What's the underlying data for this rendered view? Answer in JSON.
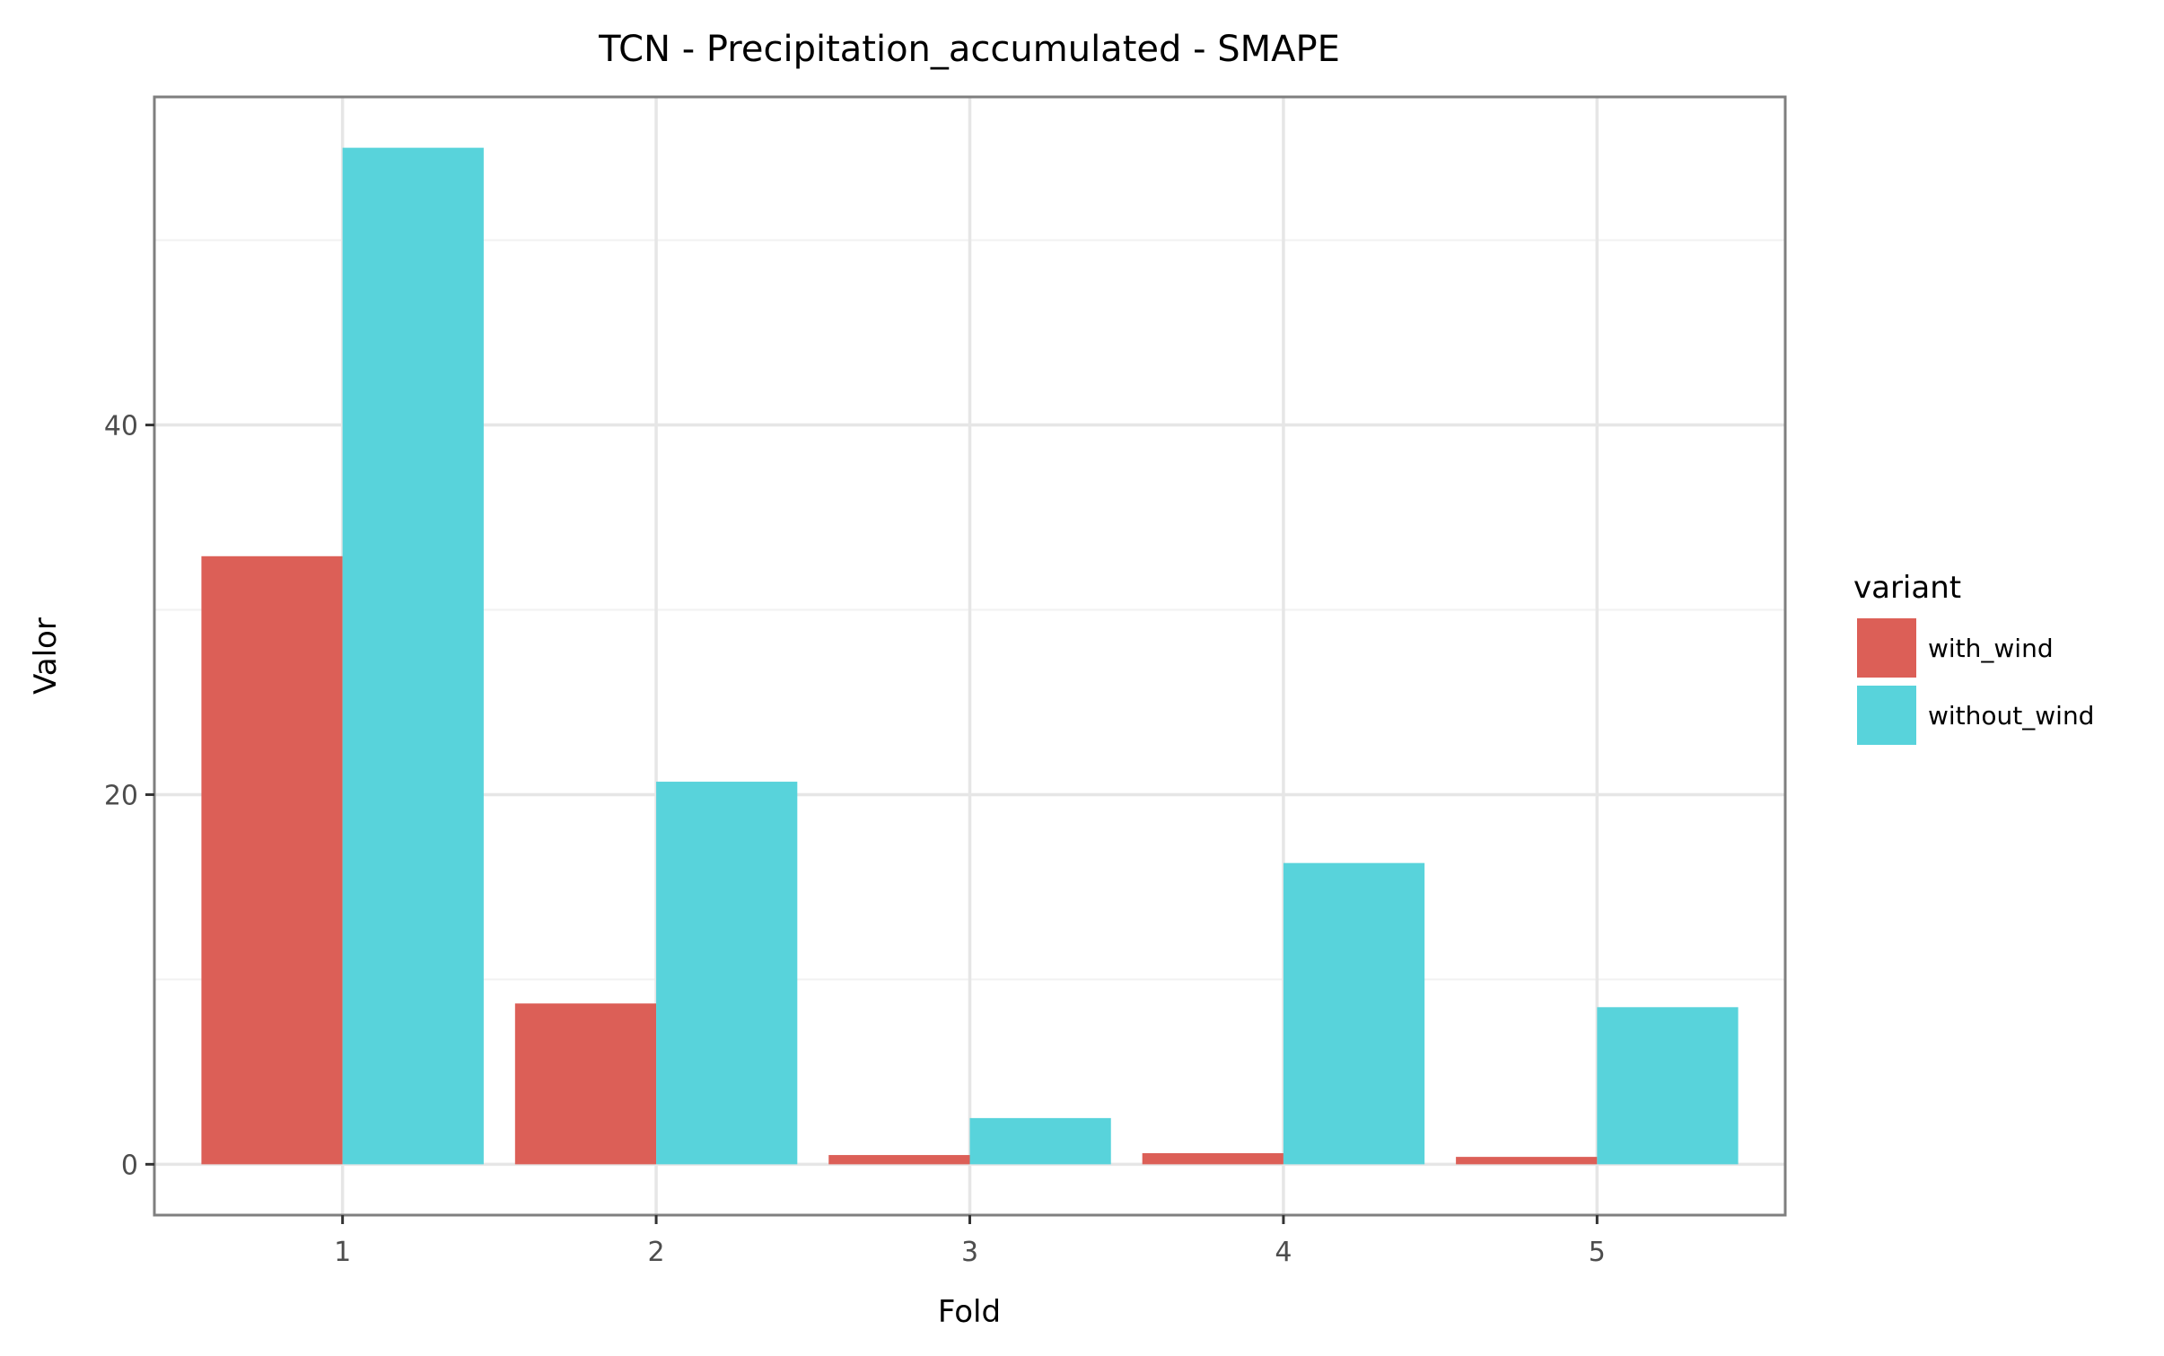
{
  "chart_data": {
    "type": "bar",
    "title": "TCN - Precipitation_accumulated - SMAPE",
    "xlabel": "Fold",
    "ylabel": "Valor",
    "categories": [
      "1",
      "2",
      "3",
      "4",
      "5"
    ],
    "series": [
      {
        "name": "with_wind",
        "color": "#DC5F57",
        "values": [
          32.9,
          8.7,
          0.5,
          0.6,
          0.4
        ]
      },
      {
        "name": "without_wind",
        "color": "#58D3DB",
        "values": [
          55.0,
          20.7,
          2.5,
          16.3,
          8.5
        ]
      }
    ],
    "ylim": [
      -2.75,
      57.75
    ],
    "yticks": [
      0,
      20,
      40
    ],
    "ytick_labels": [
      "0",
      "20",
      "40"
    ],
    "legend": {
      "title": "variant",
      "position": "right"
    },
    "grid": true
  }
}
